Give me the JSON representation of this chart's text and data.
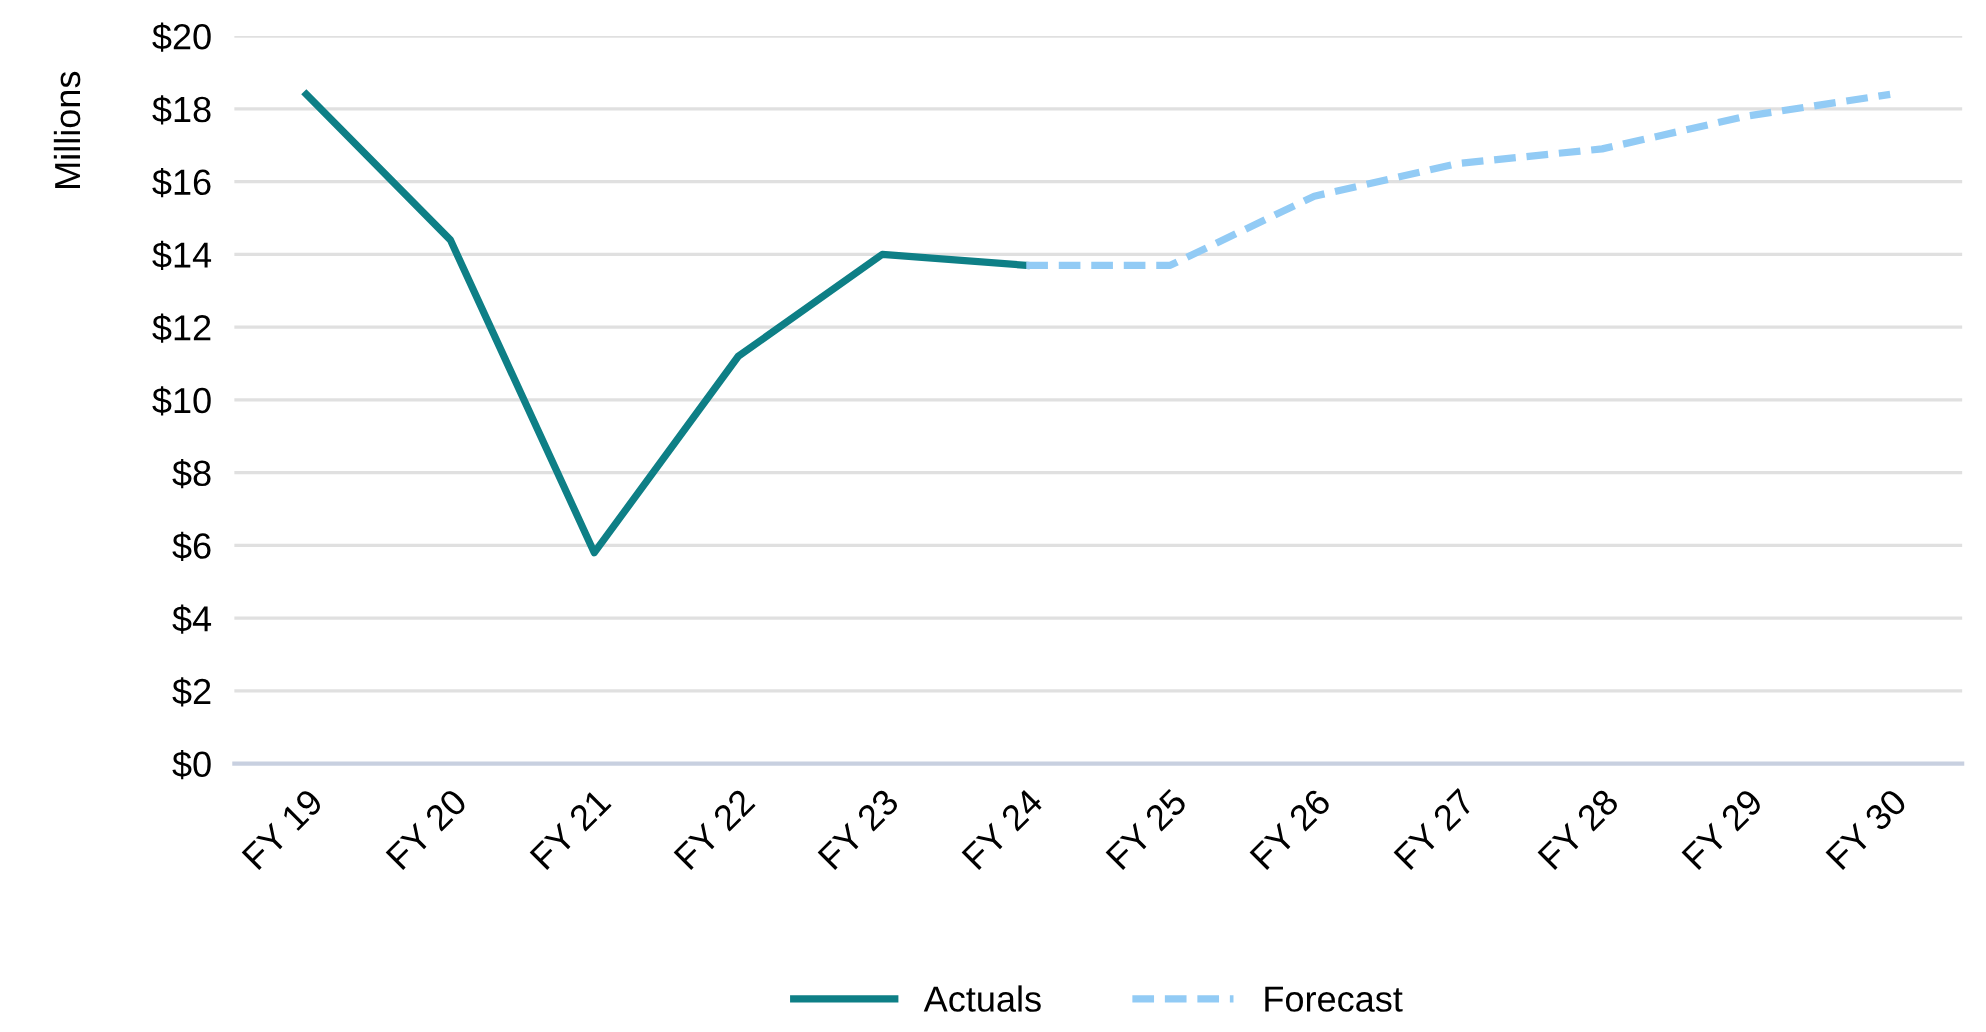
{
  "chart_data": {
    "type": "line",
    "ylabel": "Millions",
    "categories": [
      "FY 19",
      "FY 20",
      "FY 21",
      "FY 22",
      "FY 23",
      "FY 24",
      "FY 25",
      "FY 26",
      "FY 27",
      "FY 28",
      "FY 29",
      "FY 30"
    ],
    "series": [
      {
        "name": "Actuals",
        "color": "#0e7f86",
        "line_style": "solid",
        "values": [
          18.4,
          14.4,
          5.8,
          11.2,
          14.0,
          13.7,
          null,
          null,
          null,
          null,
          null,
          null
        ]
      },
      {
        "name": "Forecast",
        "color": "#92cbf5",
        "line_style": "dashed",
        "values": [
          null,
          null,
          null,
          null,
          null,
          13.7,
          13.7,
          15.6,
          16.5,
          16.9,
          17.8,
          18.4
        ]
      }
    ],
    "ylim": [
      0,
      20
    ],
    "yticks": [
      {
        "value": 0,
        "label": "$0"
      },
      {
        "value": 2,
        "label": "$2"
      },
      {
        "value": 4,
        "label": "$4"
      },
      {
        "value": 6,
        "label": "$6"
      },
      {
        "value": 8,
        "label": "$8"
      },
      {
        "value": 10,
        "label": "$10"
      },
      {
        "value": 12,
        "label": "$12"
      },
      {
        "value": 14,
        "label": "$14"
      },
      {
        "value": 16,
        "label": "$16"
      },
      {
        "value": 18,
        "label": "$18"
      },
      {
        "value": 20,
        "label": "$20"
      }
    ],
    "grid": "y",
    "legend": "bottom",
    "marker": "none"
  }
}
